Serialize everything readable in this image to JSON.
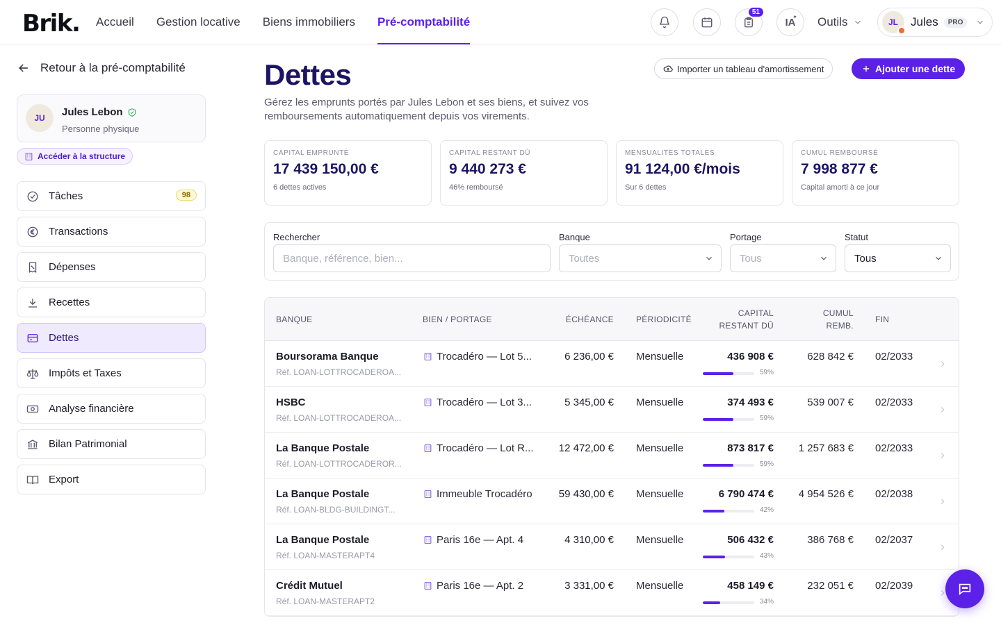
{
  "brand": {
    "logo": "Brik."
  },
  "nav": [
    {
      "label": "Accueil",
      "active": false
    },
    {
      "label": "Gestion locative",
      "active": false
    },
    {
      "label": "Biens immobiliers",
      "active": false
    },
    {
      "label": "Pré-comptabilité",
      "active": true
    }
  ],
  "header": {
    "notifications_count": "51",
    "ia_label": "IA",
    "tools_label": "Outils",
    "user": {
      "initials": "JL",
      "name": "Jules",
      "badge": "PRO"
    }
  },
  "sidebar": {
    "back_label": "Retour à la pré-comptabilité",
    "profile": {
      "initials": "JU",
      "name": "Jules Lebon",
      "type": "Personne physique"
    },
    "structure_link": "Accéder à la structure",
    "items": [
      {
        "label": "Tâches",
        "icon": "check-circle-icon",
        "badge": "98"
      },
      {
        "label": "Transactions",
        "icon": "euro-icon"
      },
      {
        "label": "Dépenses",
        "icon": "receipt-icon"
      },
      {
        "label": "Recettes",
        "icon": "download-icon"
      },
      {
        "label": "Dettes",
        "icon": "credit-card-icon",
        "active": true
      },
      {
        "label": "Impôts et Taxes",
        "icon": "scale-icon"
      },
      {
        "label": "Analyse financière",
        "icon": "banknote-icon"
      },
      {
        "label": "Bilan Patrimonial",
        "icon": "bank-icon"
      },
      {
        "label": "Export",
        "icon": "book-icon"
      }
    ]
  },
  "main": {
    "title": "Dettes",
    "description": "Gérez les emprunts portés par Jules Lebon et ses biens, et suivez vos remboursements automatiquement depuis vos virements.",
    "import_button": "Importer un tableau d'amortissement",
    "add_button": "Ajouter une dette"
  },
  "kpis": [
    {
      "label": "Capital emprunté",
      "value": "17 439 150,00 €",
      "sub": "6 dettes actives"
    },
    {
      "label": "Capital restant dû",
      "value": "9 440 273 €",
      "sub": "46% remboursé"
    },
    {
      "label": "Mensualités totales",
      "value": "91 124,00 €/mois",
      "sub": "Sur 6 dettes"
    },
    {
      "label": "Cumul remboursé",
      "value": "7 998 877 €",
      "sub": "Capital amorti à ce jour"
    }
  ],
  "filters": {
    "search": {
      "label": "Rechercher",
      "placeholder": "Banque, référence, bien..."
    },
    "bank": {
      "label": "Banque",
      "value": "Toutes"
    },
    "portage": {
      "label": "Portage",
      "value": "Tous"
    },
    "status": {
      "label": "Statut",
      "value": "Tous"
    }
  },
  "table": {
    "headers": {
      "bank": "Banque",
      "bien": "Bien / Portage",
      "echeance": "Échéance",
      "periodicite": "Périodicité",
      "capital": "Capital restant dû",
      "cumul": "Cumul remb.",
      "fin": "Fin"
    },
    "rows": [
      {
        "bank": "Boursorama Banque",
        "ref": "Réf. LOAN-LOTTROCADEROA...",
        "bien": "Trocadéro — Lot 5...",
        "echeance": "6 236,00 €",
        "periodicite": "Mensuelle",
        "capital": "436 908 €",
        "pct_label": "59%",
        "progress": 0.59,
        "cumul": "628 842 €",
        "fin": "02/2033"
      },
      {
        "bank": "HSBC",
        "ref": "Réf. LOAN-LOTTROCADEROA...",
        "bien": "Trocadéro — Lot 3...",
        "echeance": "5 345,00 €",
        "periodicite": "Mensuelle",
        "capital": "374 493 €",
        "pct_label": "59%",
        "progress": 0.59,
        "cumul": "539 007 €",
        "fin": "02/2033"
      },
      {
        "bank": "La Banque Postale",
        "ref": "Réf. LOAN-LOTTROCADEROR...",
        "bien": "Trocadéro — Lot R...",
        "echeance": "12 472,00 €",
        "periodicite": "Mensuelle",
        "capital": "873 817 €",
        "pct_label": "59%",
        "progress": 0.59,
        "cumul": "1 257 683 €",
        "fin": "02/2033"
      },
      {
        "bank": "La Banque Postale",
        "ref": "Réf. LOAN-BLDG-BUILDINGT...",
        "bien": "Immeuble Trocadéro",
        "echeance": "59 430,00 €",
        "periodicite": "Mensuelle",
        "capital": "6 790 474 €",
        "pct_label": "42%",
        "progress": 0.42,
        "cumul": "4 954 526 €",
        "fin": "02/2038"
      },
      {
        "bank": "La Banque Postale",
        "ref": "Réf. LOAN-MASTERAPT4",
        "bien": "Paris 16e — Apt. 4",
        "echeance": "4 310,00 €",
        "periodicite": "Mensuelle",
        "capital": "506 432 €",
        "pct_label": "43%",
        "progress": 0.43,
        "cumul": "386 768 €",
        "fin": "02/2037"
      },
      {
        "bank": "Crédit Mutuel",
        "ref": "Réf. LOAN-MASTERAPT2",
        "bien": "Paris 16e — Apt. 2",
        "echeance": "3 331,00 €",
        "periodicite": "Mensuelle",
        "capital": "458 149 €",
        "pct_label": "34%",
        "progress": 0.34,
        "cumul": "232 051 €",
        "fin": "02/2039"
      }
    ]
  },
  "colors": {
    "accent": "#5b21e6",
    "title": "#1c1563"
  }
}
